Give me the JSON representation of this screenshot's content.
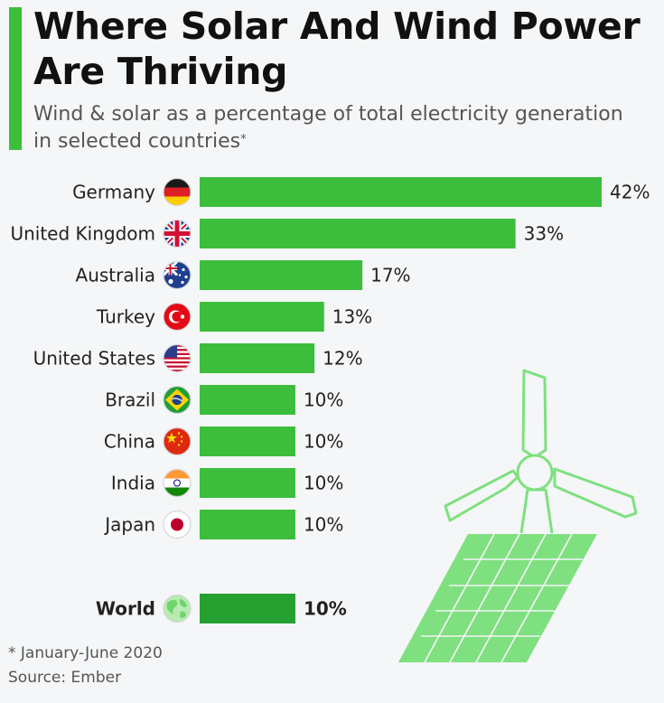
{
  "header": {
    "title_line1": "Where Solar And Wind Power",
    "title_line2": "Are Thriving",
    "subtitle_line1": "Wind & solar as a percentage of total electricity generation",
    "subtitle_line2": "in selected countries",
    "subtitle_mark": "*"
  },
  "footer": {
    "footnote": "* January-June 2020",
    "source": "Source: Ember"
  },
  "colors": {
    "accent": "#3cbe3c",
    "bar": "#3cbe3c",
    "bar_world": "#26a131",
    "illustration": "#7fe07f"
  },
  "chart_data": {
    "type": "bar",
    "orientation": "horizontal",
    "categories": [
      "Germany",
      "United Kingdom",
      "Australia",
      "Turkey",
      "United States",
      "Brazil",
      "China",
      "India",
      "Japan",
      "World"
    ],
    "values": [
      42,
      33,
      17,
      13,
      12,
      10,
      10,
      10,
      10,
      10
    ],
    "labels": [
      "42%",
      "33%",
      "17%",
      "13%",
      "12%",
      "10%",
      "10%",
      "10%",
      "10%",
      "10%"
    ],
    "flags": [
      "germany-flag-icon",
      "uk-flag-icon",
      "australia-flag-icon",
      "turkey-flag-icon",
      "us-flag-icon",
      "brazil-flag-icon",
      "china-flag-icon",
      "india-flag-icon",
      "japan-flag-icon",
      "globe-icon"
    ],
    "unit": "%",
    "highlight": "World",
    "xlim": [
      0,
      42
    ]
  }
}
